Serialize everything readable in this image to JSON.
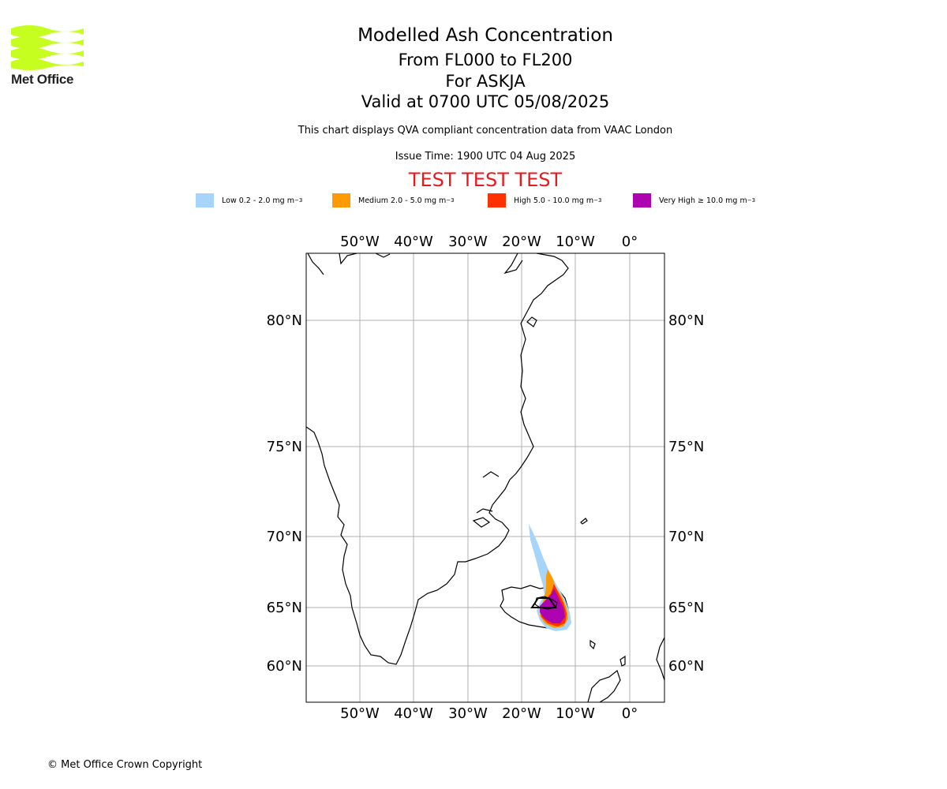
{
  "header": {
    "logo_text": "Met Office",
    "title": "Modelled Ash Concentration",
    "level_range": "From FL000 to FL200",
    "volcano": "For ASKJA",
    "valid_time": "Valid at 0700 UTC 05/08/2025",
    "description": "This chart displays QVA compliant concentration data from VAAC London",
    "issue_time": "Issue Time: 1900 UTC 04 Aug 2025",
    "test_banner": "TEST TEST TEST"
  },
  "legend": [
    {
      "label": "Low 0.2 - 2.0 mg m",
      "unit_exp": "−3",
      "color": "#a6d4fb"
    },
    {
      "label": "Medium 2.0 - 5.0 mg m",
      "unit_exp": "−3",
      "color": "#fd9a06"
    },
    {
      "label": "High 5.0 - 10.0 mg m",
      "unit_exp": "−3",
      "color": "#fe3200"
    },
    {
      "label": "Very High ≥ 10.0 mg m",
      "unit_exp": "−3",
      "color": "#ad03b0"
    }
  ],
  "map": {
    "lon_labels": [
      "50°W",
      "40°W",
      "30°W",
      "20°W",
      "10°W",
      "0°"
    ],
    "lat_labels": [
      "80°N",
      "75°N",
      "70°N",
      "65°N",
      "60°N"
    ],
    "volcano": "ASKJA",
    "grid": true
  },
  "footer": {
    "copyright": "© Met Office Crown Copyright"
  }
}
